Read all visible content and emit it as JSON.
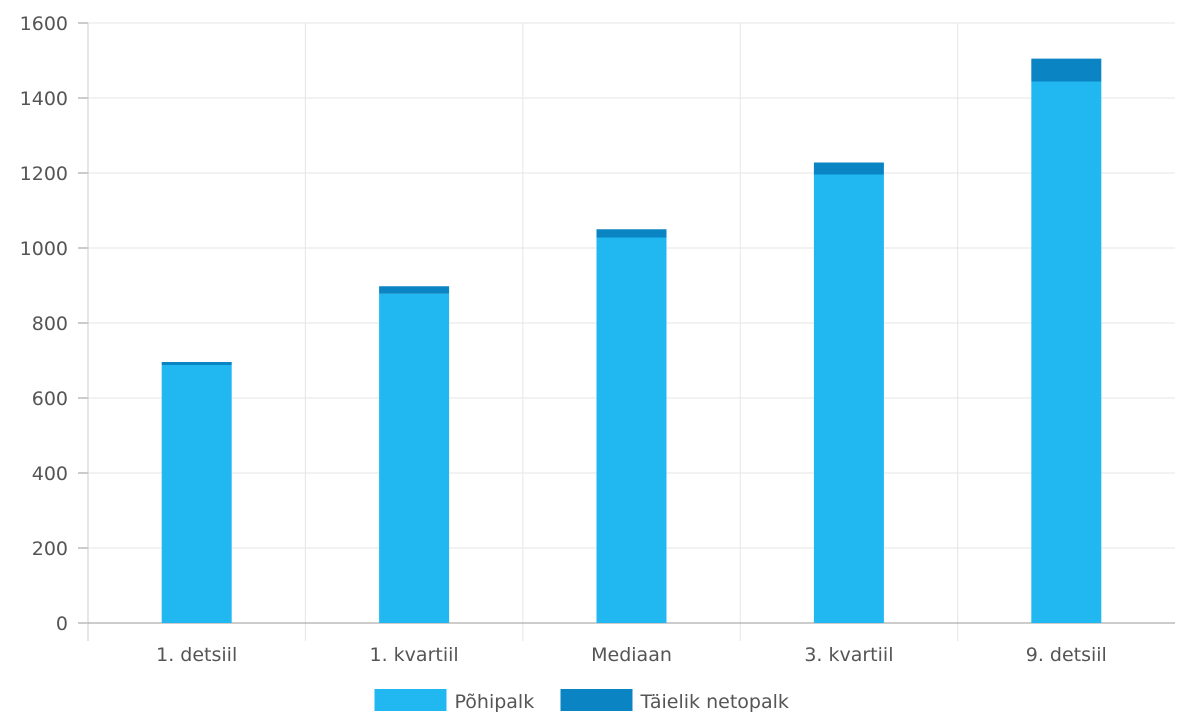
{
  "chart_data": {
    "type": "bar",
    "stacked": true,
    "categories": [
      "1. detsiil",
      "1. kvartiil",
      "Mediaan",
      "3. kvartiil",
      "9. detsiil"
    ],
    "series": [
      {
        "name": "Põhipalk",
        "values": [
          688,
          878,
          1028,
          1196,
          1444
        ],
        "color": "#21B8F1"
      },
      {
        "name": "Täielik netopalk",
        "values": [
          8,
          20,
          22,
          32,
          61
        ],
        "color": "#0B84C4"
      }
    ],
    "title": "",
    "xlabel": "",
    "ylabel": "",
    "ylim": [
      0,
      1600
    ],
    "yticks": [
      0,
      200,
      400,
      600,
      800,
      1000,
      1200,
      1400,
      1600
    ],
    "grid": true,
    "legend": "bottom-center"
  }
}
